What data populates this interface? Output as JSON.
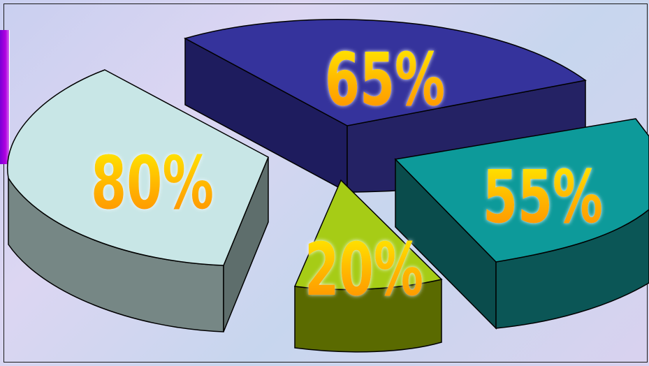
{
  "chart_data": {
    "type": "pie",
    "style": "3d-exploded",
    "slices": [
      {
        "label": "65%",
        "value": 65,
        "color": "#35339c"
      },
      {
        "label": "55%",
        "value": 55,
        "color": "#0d9a9a"
      },
      {
        "label": "20%",
        "value": 20,
        "color": "#a6cc16"
      },
      {
        "label": "80%",
        "value": 80,
        "color": "#c8e6e6"
      }
    ],
    "title": "",
    "legend": "none",
    "label_color_top": "#ffe600",
    "label_color_bottom": "#ff8a00"
  }
}
